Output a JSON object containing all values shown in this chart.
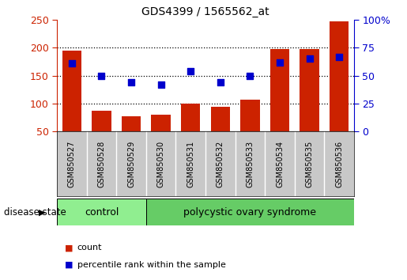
{
  "title": "GDS4399 / 1565562_at",
  "samples": [
    "GSM850527",
    "GSM850528",
    "GSM850529",
    "GSM850530",
    "GSM850531",
    "GSM850532",
    "GSM850533",
    "GSM850534",
    "GSM850535",
    "GSM850536"
  ],
  "count_values": [
    195,
    87,
    77,
    80,
    100,
    95,
    107,
    197,
    198,
    247
  ],
  "percentile_values": [
    61,
    50,
    44,
    42,
    54,
    44,
    50,
    62,
    65,
    67
  ],
  "ylim_left": [
    50,
    250
  ],
  "ylim_right": [
    0,
    100
  ],
  "yticks_left": [
    50,
    100,
    150,
    200,
    250
  ],
  "yticks_right": [
    0,
    25,
    50,
    75,
    100
  ],
  "bar_color": "#CC2200",
  "dot_color": "#0000CC",
  "control_count": 3,
  "group_labels": [
    "control",
    "polycystic ovary syndrome"
  ],
  "ctrl_color": "#90EE90",
  "poly_color": "#66CC66",
  "legend_items": [
    "count",
    "percentile rank within the sample"
  ],
  "disease_state_label": "disease state",
  "gridline_vals": [
    100,
    150,
    200
  ],
  "gray_bg": "#C8C8C8"
}
